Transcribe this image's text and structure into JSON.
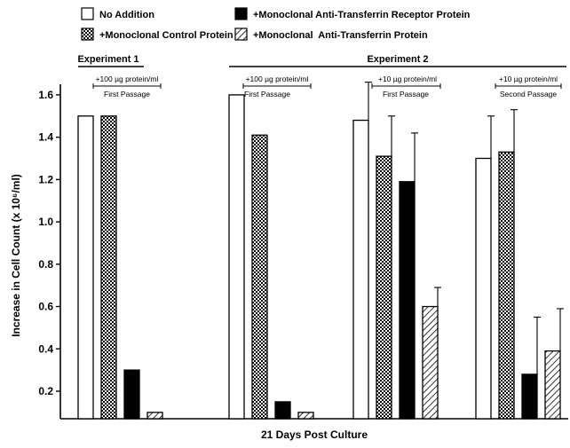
{
  "chart_data": {
    "type": "bar",
    "title": "",
    "xlabel": "21 Days Post Culture",
    "ylabel": "Increase in Cell Count (x 10⁶/ml)",
    "ylim": [
      0.07,
      1.65
    ],
    "yticks": [
      "0.2",
      "0.4",
      "0.6",
      "0.8",
      "1.0",
      "1.2",
      "1.4",
      "1.6"
    ],
    "grid": false,
    "legend": {
      "placement": "top",
      "entries": [
        {
          "name": "No Addition",
          "pattern": "white"
        },
        {
          "name": "+Monoclonal Anti-Transferrin Receptor Protein",
          "pattern": "black"
        },
        {
          "name": "+Monoclonal Control Protein",
          "pattern": "dots"
        },
        {
          "name": "+Monoclonal  Anti-Transferrin Protein",
          "pattern": "hatch"
        }
      ]
    },
    "experiments": [
      {
        "label": "Experiment 1"
      },
      {
        "label": "Experiment 2"
      }
    ],
    "groups": [
      {
        "dose": "+100 µg protein/ml",
        "passage": "First Passage",
        "bars": [
          {
            "series": "No Addition",
            "value": 1.5,
            "error": null
          },
          {
            "series": "+Monoclonal Control Protein",
            "value": 1.5,
            "error": null
          },
          {
            "series": "+Monoclonal Anti-Transferrin Receptor Protein",
            "value": 0.3,
            "error": null
          },
          {
            "series": "+Monoclonal  Anti-Transferrin Protein",
            "value": 0.1,
            "error": null
          }
        ]
      },
      {
        "dose": "+100 µg protein/ml",
        "passage": "First Passage",
        "bars": [
          {
            "series": "No Addition",
            "value": 1.6,
            "error": null
          },
          {
            "series": "+Monoclonal Control Protein",
            "value": 1.41,
            "error": null
          },
          {
            "series": "+Monoclonal Anti-Transferrin Receptor Protein",
            "value": 0.15,
            "error": null
          },
          {
            "series": "+Monoclonal  Anti-Transferrin Protein",
            "value": 0.1,
            "error": null
          }
        ]
      },
      {
        "dose": "+10 µg protein/ml",
        "passage": "First Passage",
        "bars": [
          {
            "series": "No Addition",
            "value": 1.48,
            "error": 0.18
          },
          {
            "series": "+Monoclonal Control Protein",
            "value": 1.31,
            "error": 0.19
          },
          {
            "series": "+Monoclonal Anti-Transferrin Receptor Protein",
            "value": 1.19,
            "error": 0.23
          },
          {
            "series": "+Monoclonal  Anti-Transferrin Protein",
            "value": 0.6,
            "error": 0.09
          }
        ]
      },
      {
        "dose": "+10 µg protein/ml",
        "passage": "Second Passage",
        "bars": [
          {
            "series": "No Addition",
            "value": 1.3,
            "error": 0.2
          },
          {
            "series": "+Monoclonal Control Protein",
            "value": 1.33,
            "error": 0.2
          },
          {
            "series": "+Monoclonal Anti-Transferrin Receptor Protein",
            "value": 0.28,
            "error": 0.27
          },
          {
            "series": "+Monoclonal  Anti-Transferrin Protein",
            "value": 0.39,
            "error": 0.2
          }
        ]
      }
    ]
  }
}
